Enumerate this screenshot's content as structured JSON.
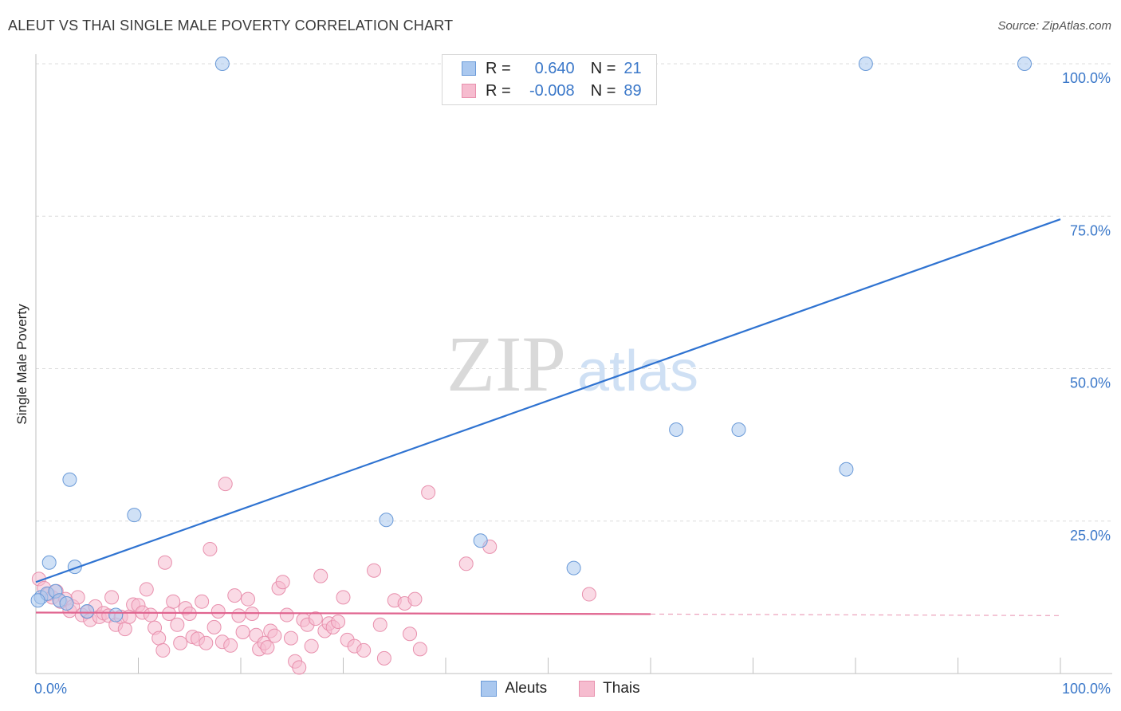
{
  "title": "ALEUT VS THAI SINGLE MALE POVERTY CORRELATION CHART",
  "source": "Source: ZipAtlas.com",
  "watermark": {
    "zip": "ZIP",
    "atlas": "atlas"
  },
  "legend_top": {
    "rows": [
      {
        "r_label": "R =",
        "r_value": "0.640",
        "n_label": "N =",
        "n_value": "21",
        "color": "#aac8ef",
        "border": "#6a9ad8"
      },
      {
        "r_label": "R =",
        "r_value": "-0.008",
        "n_label": "N =",
        "n_value": "89",
        "color": "#f6bccf",
        "border": "#e890ad"
      }
    ]
  },
  "legend_bottom": [
    {
      "label": "Aleuts",
      "color": "#aac8ef",
      "border": "#6a9ad8"
    },
    {
      "label": "Thais",
      "color": "#f6bccf",
      "border": "#e890ad"
    }
  ],
  "chart_data": {
    "type": "scatter",
    "title": "ALEUT VS THAI SINGLE MALE POVERTY CORRELATION CHART",
    "xlabel": "",
    "ylabel": "Single Male Poverty",
    "xlim": [
      0,
      100
    ],
    "ylim": [
      0,
      100
    ],
    "x_tick_labels": [
      "0.0%",
      "100.0%"
    ],
    "y_tick_labels": [
      {
        "value": 25,
        "label": "25.0%"
      },
      {
        "value": 50,
        "label": "50.0%"
      },
      {
        "value": 75,
        "label": "75.0%"
      },
      {
        "value": 100,
        "label": "100.0%"
      }
    ],
    "series": [
      {
        "name": "Aleuts",
        "color": "#6a9ad8",
        "fill": "#aac8ef",
        "trend_color": "#2f73d1",
        "trend": {
          "x0": 0,
          "y0": 15.0,
          "x1": 100,
          "y1": 74.5
        },
        "points": [
          [
            18.2,
            100
          ],
          [
            81.0,
            100
          ],
          [
            96.5,
            100
          ],
          [
            62.5,
            40.0
          ],
          [
            68.6,
            40.0
          ],
          [
            79.1,
            33.5
          ],
          [
            3.3,
            31.8
          ],
          [
            9.6,
            26.0
          ],
          [
            34.2,
            25.2
          ],
          [
            43.4,
            21.8
          ],
          [
            52.5,
            17.3
          ],
          [
            1.3,
            18.2
          ],
          [
            3.8,
            17.5
          ],
          [
            0.5,
            12.5
          ],
          [
            1.1,
            13.1
          ],
          [
            1.9,
            13.5
          ],
          [
            2.3,
            12.0
          ],
          [
            3.0,
            11.5
          ],
          [
            5.0,
            10.2
          ],
          [
            7.8,
            9.6
          ],
          [
            0.2,
            12.0
          ]
        ]
      },
      {
        "name": "Thais",
        "color": "#e890ad",
        "fill": "#f6bccf",
        "trend_color": "#e0648f",
        "trend": {
          "x0": 0,
          "y0": 10.0,
          "x1": 60,
          "y1": 9.75
        },
        "trend_dashed": {
          "x0": 60,
          "y0": 9.75,
          "x1": 100,
          "y1": 9.5
        },
        "points": [
          [
            0.3,
            15.5
          ],
          [
            0.8,
            14.0
          ],
          [
            1.2,
            13.0
          ],
          [
            1.6,
            12.5
          ],
          [
            2.0,
            13.5
          ],
          [
            2.4,
            11.8
          ],
          [
            2.9,
            12.2
          ],
          [
            3.3,
            10.3
          ],
          [
            3.6,
            11.0
          ],
          [
            4.1,
            12.5
          ],
          [
            4.5,
            9.6
          ],
          [
            5.0,
            10.1
          ],
          [
            5.3,
            8.8
          ],
          [
            5.8,
            11.0
          ],
          [
            6.2,
            9.3
          ],
          [
            6.6,
            9.9
          ],
          [
            7.1,
            9.5
          ],
          [
            7.4,
            12.5
          ],
          [
            7.8,
            8.0
          ],
          [
            8.3,
            9.3
          ],
          [
            8.7,
            7.3
          ],
          [
            9.1,
            9.3
          ],
          [
            9.5,
            11.3
          ],
          [
            10.0,
            11.2
          ],
          [
            10.4,
            10.0
          ],
          [
            10.8,
            13.8
          ],
          [
            11.2,
            9.6
          ],
          [
            11.6,
            7.5
          ],
          [
            12.0,
            5.8
          ],
          [
            12.4,
            3.8
          ],
          [
            12.6,
            18.2
          ],
          [
            13.0,
            9.8
          ],
          [
            13.4,
            11.8
          ],
          [
            13.8,
            8.0
          ],
          [
            14.1,
            5.0
          ],
          [
            14.6,
            10.7
          ],
          [
            15.0,
            9.8
          ],
          [
            15.3,
            6.0
          ],
          [
            15.8,
            5.7
          ],
          [
            16.2,
            11.8
          ],
          [
            16.6,
            5.0
          ],
          [
            17.0,
            20.4
          ],
          [
            17.4,
            7.6
          ],
          [
            17.8,
            10.2
          ],
          [
            18.2,
            5.2
          ],
          [
            18.5,
            31.1
          ],
          [
            19.0,
            4.6
          ],
          [
            19.4,
            12.8
          ],
          [
            19.8,
            9.5
          ],
          [
            20.2,
            6.8
          ],
          [
            20.7,
            12.2
          ],
          [
            21.1,
            9.8
          ],
          [
            21.5,
            6.3
          ],
          [
            21.8,
            4.0
          ],
          [
            22.3,
            5.0
          ],
          [
            22.6,
            4.3
          ],
          [
            22.9,
            7.0
          ],
          [
            23.3,
            6.2
          ],
          [
            23.7,
            14.0
          ],
          [
            24.1,
            15.0
          ],
          [
            24.5,
            9.6
          ],
          [
            24.9,
            5.8
          ],
          [
            25.3,
            2.0
          ],
          [
            25.7,
            1.0
          ],
          [
            26.1,
            8.8
          ],
          [
            26.5,
            8.0
          ],
          [
            26.9,
            4.5
          ],
          [
            27.3,
            9.0
          ],
          [
            27.8,
            16.0
          ],
          [
            28.2,
            7.0
          ],
          [
            28.6,
            8.2
          ],
          [
            29.0,
            7.6
          ],
          [
            29.5,
            8.5
          ],
          [
            30.0,
            12.5
          ],
          [
            30.4,
            5.5
          ],
          [
            31.1,
            4.5
          ],
          [
            32.0,
            3.8
          ],
          [
            33.0,
            16.9
          ],
          [
            33.6,
            8.0
          ],
          [
            34.0,
            2.5
          ],
          [
            35.0,
            12.0
          ],
          [
            36.0,
            11.5
          ],
          [
            36.5,
            6.5
          ],
          [
            37.0,
            12.2
          ],
          [
            37.5,
            4.0
          ],
          [
            38.3,
            29.7
          ],
          [
            42.0,
            18.0
          ],
          [
            44.3,
            20.8
          ],
          [
            54.0,
            13.0
          ]
        ]
      }
    ]
  }
}
